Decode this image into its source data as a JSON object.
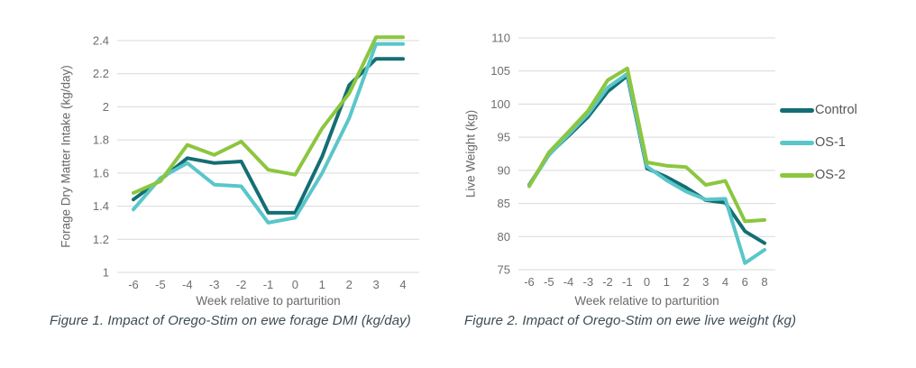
{
  "page": {
    "background": "#ffffff"
  },
  "colors": {
    "control": "#146e74",
    "os1": "#5ac6c9",
    "os2": "#8cc63f",
    "gridline": "#d9d9d9",
    "axis_text": "#696969",
    "caption_text": "#3c4b54"
  },
  "legend": {
    "items": [
      {
        "label": "Control",
        "color": "#146e74"
      },
      {
        "label": "OS-1",
        "color": "#5ac6c9"
      },
      {
        "label": "OS-2",
        "color": "#8cc63f"
      }
    ]
  },
  "chart_data": [
    {
      "type": "line",
      "caption": "Figure 1. Impact of Orego-Stim on ewe forage DMI (kg/day)",
      "xlabel": "Week relative to parturition",
      "ylabel": "Forage Dry Matter Intake (kg/day)",
      "x_labels": [
        "-6",
        "-5",
        "-4",
        "-3",
        "-2",
        "-1",
        "0",
        "1",
        "2",
        "3",
        "4"
      ],
      "ylim": [
        1,
        2.4
      ],
      "yticks": [
        2.4,
        2.2,
        2,
        1.8,
        1.6,
        1.4,
        1.2,
        1
      ],
      "ytick_labels": [
        "2.4",
        "2.2",
        "2",
        "1.8",
        "1.6",
        "1.4",
        "1.2",
        "1"
      ],
      "grid": "horizontal",
      "series": [
        {
          "name": "Control",
          "color": "#146e74",
          "values": [
            1.44,
            1.56,
            1.69,
            1.66,
            1.67,
            1.36,
            1.36,
            1.7,
            2.13,
            2.29,
            2.29
          ]
        },
        {
          "name": "OS-1",
          "color": "#5ac6c9",
          "values": [
            1.38,
            1.57,
            1.66,
            1.53,
            1.52,
            1.3,
            1.33,
            1.6,
            1.93,
            2.38,
            2.38
          ]
        },
        {
          "name": "OS-2",
          "color": "#8cc63f",
          "values": [
            1.48,
            1.55,
            1.77,
            1.71,
            1.79,
            1.62,
            1.59,
            1.87,
            2.08,
            2.42,
            2.42
          ]
        }
      ]
    },
    {
      "type": "line",
      "caption": "Figure 2. Impact of Orego-Stim on ewe live weight (kg)",
      "xlabel": "Week relative to parturition",
      "ylabel": "Live Weight (kg)",
      "x_labels": [
        "-6",
        "-5",
        "-4",
        "-3",
        "-2",
        "-1",
        "0",
        "1",
        "2",
        "3",
        "4",
        "6",
        "8"
      ],
      "ylim": [
        75,
        110
      ],
      "yticks": [
        110,
        105,
        100,
        95,
        90,
        85,
        80,
        75
      ],
      "ytick_labels": [
        "110",
        "105",
        "100",
        "95",
        "90",
        "85",
        "80",
        "75"
      ],
      "grid": "horizontal",
      "series": [
        {
          "name": "Control",
          "color": "#146e74",
          "values": [
            87.8,
            92.4,
            95.2,
            98.1,
            101.9,
            104.3,
            90.3,
            89.0,
            87.4,
            85.5,
            85.1,
            80.8,
            79.0
          ]
        },
        {
          "name": "OS-1",
          "color": "#5ac6c9",
          "values": [
            87.7,
            92.3,
            95.4,
            98.5,
            102.5,
            104.6,
            90.6,
            88.5,
            86.8,
            85.6,
            85.7,
            76.0,
            78.0
          ]
        },
        {
          "name": "OS-2",
          "color": "#8cc63f",
          "values": [
            87.6,
            92.7,
            95.8,
            99.0,
            103.6,
            105.4,
            91.2,
            90.7,
            90.5,
            87.8,
            88.4,
            82.3,
            82.5
          ]
        }
      ]
    }
  ]
}
